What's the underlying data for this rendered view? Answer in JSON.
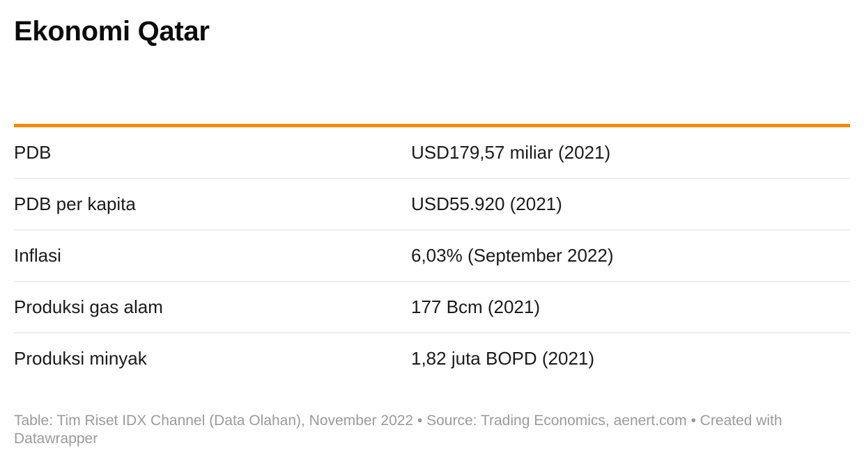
{
  "title": "Ekonomi Qatar",
  "accent_color": "#f08c00",
  "table": {
    "rows": [
      {
        "label": "PDB",
        "value": "USD179,57 miliar (2021)"
      },
      {
        "label": "PDB per kapita",
        "value": "USD55.920 (2021)"
      },
      {
        "label": "Inflasi",
        "value": "6,03% (September 2022)"
      },
      {
        "label": "Produksi gas alam",
        "value": "177 Bcm (2021)"
      },
      {
        "label": "Produksi minyak",
        "value": "1,82 juta BOPD (2021)"
      }
    ]
  },
  "footer": {
    "text": "Table: Tim Riset IDX Channel (Data Olahan), November 2022 • Source: Trading Economics, aenert.com • Created with Datawrapper"
  }
}
